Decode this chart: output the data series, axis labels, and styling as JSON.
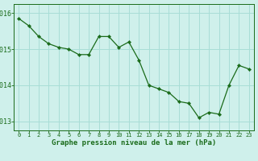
{
  "x": [
    0,
    1,
    2,
    3,
    4,
    5,
    6,
    7,
    8,
    9,
    10,
    11,
    12,
    13,
    14,
    15,
    16,
    17,
    18,
    19,
    20,
    21,
    22,
    23
  ],
  "y": [
    1015.85,
    1015.65,
    1015.35,
    1015.15,
    1015.05,
    1015.0,
    1014.85,
    1014.85,
    1015.35,
    1015.35,
    1015.05,
    1015.2,
    1014.7,
    1014.0,
    1013.9,
    1013.8,
    1013.55,
    1013.5,
    1013.1,
    1013.25,
    1013.2,
    1014.0,
    1014.55,
    1014.45
  ],
  "line_color": "#1a6b1a",
  "marker": "D",
  "marker_size": 2.2,
  "background_color": "#cff0eb",
  "grid_color": "#a8ddd6",
  "xlabel": "Graphe pression niveau de la mer (hPa)",
  "xlabel_color": "#1a6b1a",
  "tick_color": "#1a6b1a",
  "ylim": [
    1012.75,
    1016.25
  ],
  "yticks": [
    1013,
    1014,
    1015,
    1016
  ],
  "xlim": [
    -0.5,
    23.5
  ],
  "xticks": [
    0,
    1,
    2,
    3,
    4,
    5,
    6,
    7,
    8,
    9,
    10,
    11,
    12,
    13,
    14,
    15,
    16,
    17,
    18,
    19,
    20,
    21,
    22,
    23
  ],
  "xtick_fontsize": 5.0,
  "ytick_fontsize": 6.0,
  "xlabel_fontsize": 6.5,
  "linewidth": 0.9
}
